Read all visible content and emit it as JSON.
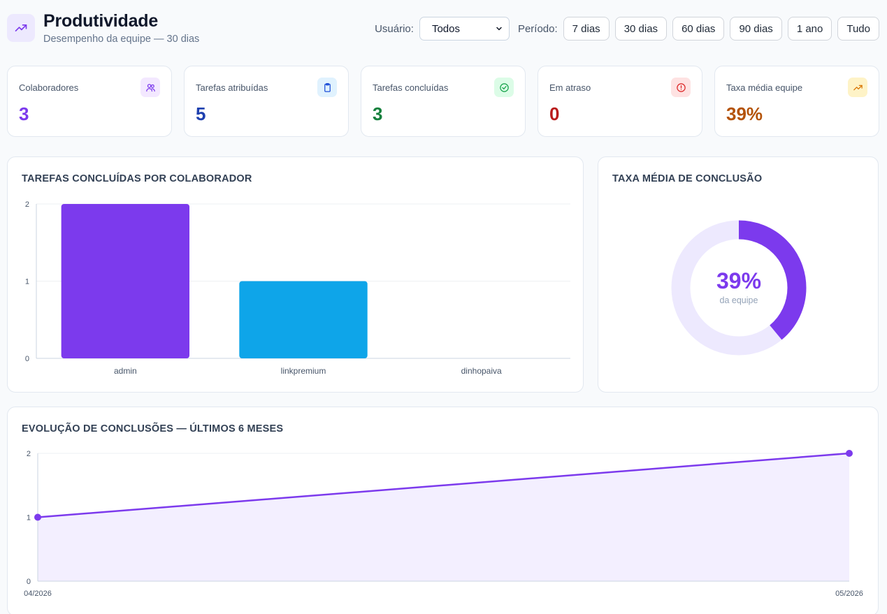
{
  "header": {
    "title": "Produtividade",
    "subtitle": "Desempenho da equipe — 30 dias",
    "icon": "trending-up-icon"
  },
  "filters": {
    "user_label": "Usuário:",
    "user_value": "Todos",
    "period_label": "Período:",
    "periods": [
      "7 dias",
      "30 dias",
      "60 dias",
      "90 dias",
      "1 ano",
      "Tudo"
    ]
  },
  "stats": [
    {
      "label": "Colaboradores",
      "value": "3",
      "color": "#7c3aed",
      "icon": "users-icon",
      "icon_bg": "#f3e8ff"
    },
    {
      "label": "Tarefas atribuídas",
      "value": "5",
      "color": "#1e40af",
      "icon": "clipboard-icon",
      "icon_bg": "#e0f2fe"
    },
    {
      "label": "Tarefas concluídas",
      "value": "3",
      "color": "#15803d",
      "icon": "check-circle-icon",
      "icon_bg": "#dcfce7"
    },
    {
      "label": "Em atraso",
      "value": "0",
      "color": "#b91c1c",
      "icon": "alert-circle-icon",
      "icon_bg": "#fee2e2"
    },
    {
      "label": "Taxa média equipe",
      "value": "39%",
      "color": "#b45309",
      "icon": "trending-up-icon",
      "icon_bg": "#fef3c7"
    }
  ],
  "bar_card": {
    "title": "TAREFAS CONCLUÍDAS POR COLABORADOR"
  },
  "donut_card": {
    "title": "TAXA MÉDIA DE CONCLUSÃO",
    "value_label": "39%",
    "caption": "da equipe"
  },
  "line_card": {
    "title": "EVOLUÇÃO DE CONCLUSÕES — ÚLTIMOS 6 MESES"
  },
  "chart_data": [
    {
      "type": "bar",
      "categories": [
        "admin",
        "linkpremium",
        "dinhopaiva"
      ],
      "values": [
        2,
        1,
        0
      ],
      "colors": [
        "#7c3aed",
        "#0ea5e9",
        "#f59e0b"
      ],
      "ylim": [
        0,
        2
      ],
      "yticks": [
        0,
        1,
        2
      ]
    },
    {
      "type": "pie",
      "values": [
        39,
        61
      ],
      "colors": [
        "#7c3aed",
        "#ede9fe"
      ]
    },
    {
      "type": "area",
      "x": [
        "04/2026",
        "05/2026"
      ],
      "values": [
        1,
        2
      ],
      "color": "#7c3aed",
      "fill": "#f3efff",
      "ylim": [
        0,
        2
      ],
      "yticks": [
        0,
        1,
        2
      ]
    }
  ]
}
